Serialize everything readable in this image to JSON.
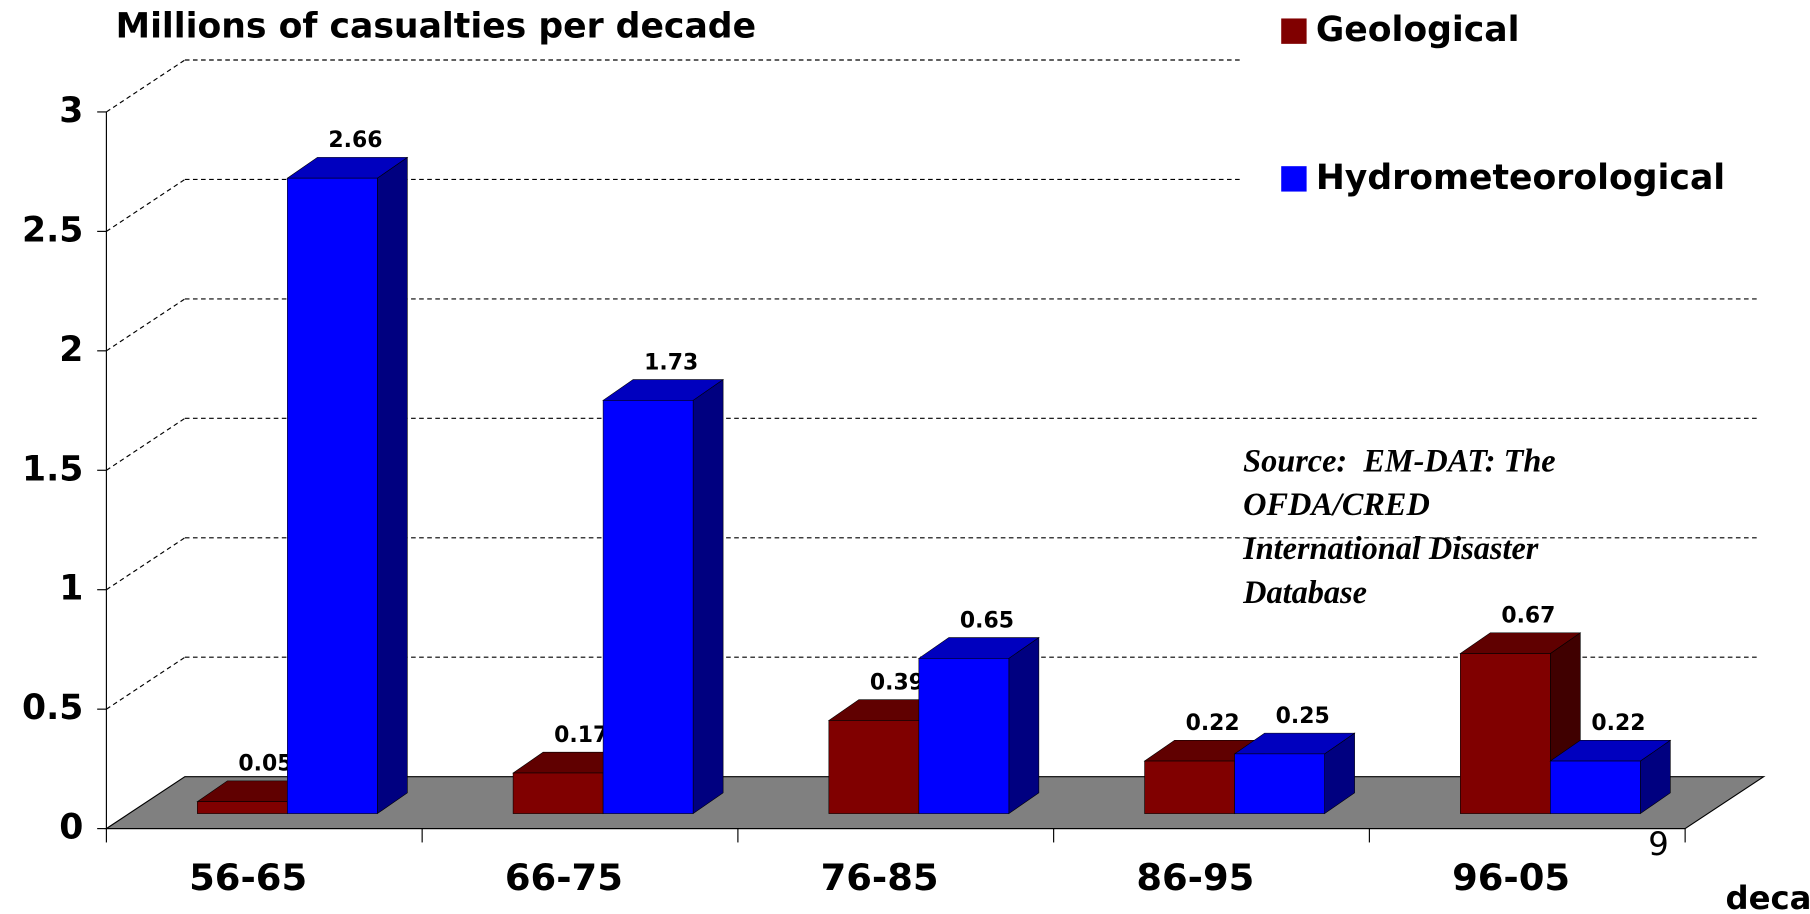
{
  "chart_data": {
    "type": "bar3d",
    "title": "Millions of casualties per decade",
    "x_label": "decade",
    "axis_note": "9",
    "annotation": [
      "Source:  EM-DAT: The",
      "OFDA/CRED",
      "International Disaster",
      "Database"
    ],
    "categories": [
      "56-65",
      "66-75",
      "76-85",
      "86-95",
      "96-05"
    ],
    "series": [
      {
        "name": "Geological",
        "color": "#800000",
        "values": [
          0.05,
          0.17,
          0.39,
          0.22,
          0.67
        ]
      },
      {
        "name": "Hydrometeorological",
        "color": "#0000ff",
        "values": [
          2.66,
          1.73,
          0.65,
          0.25,
          0.22
        ]
      }
    ],
    "ylim": [
      0,
      3
    ],
    "yticks": [
      0,
      0.5,
      1,
      1.5,
      2,
      2.5,
      3
    ],
    "grid": true,
    "legend": "top-right"
  }
}
